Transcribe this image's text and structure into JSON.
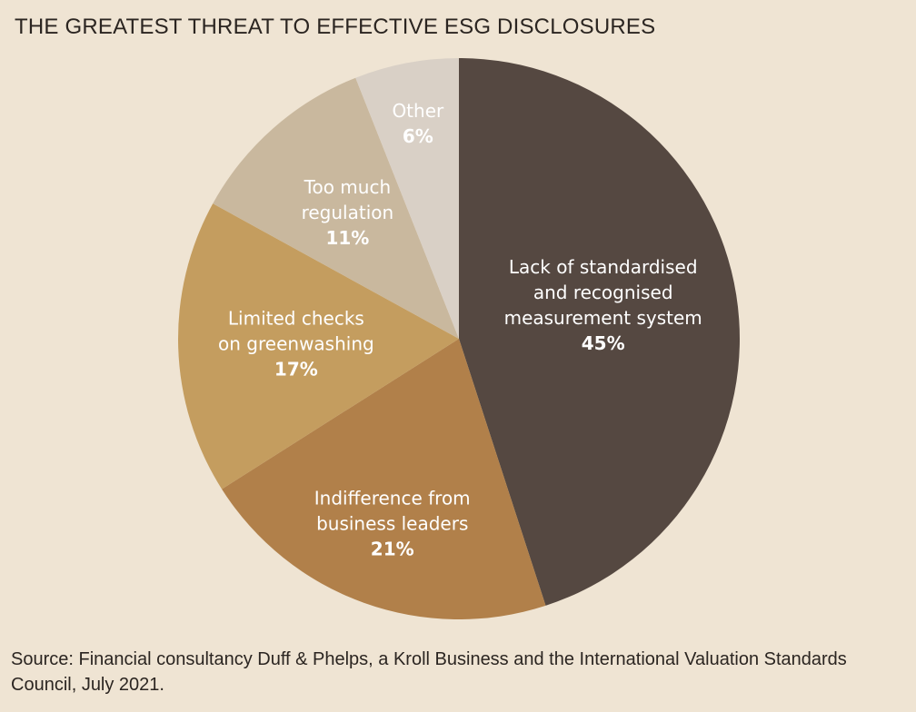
{
  "chart_data": {
    "type": "pie",
    "title": "THE GREATEST THREAT TO EFFECTIVE ESG DISCLOSURES",
    "slices": [
      {
        "label": [
          "Lack of standardised",
          "and recognised",
          "measurement system"
        ],
        "value": 45,
        "display": "45%",
        "color": "#554841"
      },
      {
        "label": [
          "Indifference from",
          "business leaders"
        ],
        "value": 21,
        "display": "21%",
        "color": "#b1804a"
      },
      {
        "label": [
          "Limited checks",
          "on greenwashing"
        ],
        "value": 17,
        "display": "17%",
        "color": "#c49d5f"
      },
      {
        "label": [
          "Too much",
          "regulation"
        ],
        "value": 11,
        "display": "11%",
        "color": "#c9b89e"
      },
      {
        "label": [
          "Other"
        ],
        "value": 6,
        "display": "6%",
        "color": "#d9d0c6"
      }
    ]
  },
  "source": "Source: Financial consultancy Duff & Phelps, a Kroll Business and the International Valuation Standards Council, July 2021."
}
